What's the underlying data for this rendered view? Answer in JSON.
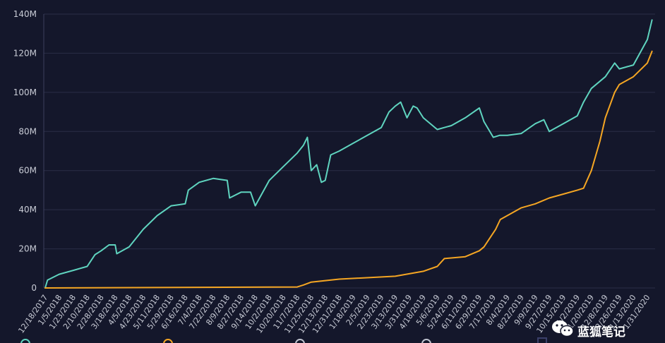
{
  "chart_data": {
    "type": "line",
    "ylim": [
      0,
      140000000
    ],
    "y_ticks": [
      {
        "value": 0,
        "label": "0"
      },
      {
        "value": 20000000,
        "label": "20M"
      },
      {
        "value": 40000000,
        "label": "40M"
      },
      {
        "value": 60000000,
        "label": "60M"
      },
      {
        "value": 80000000,
        "label": "80M"
      },
      {
        "value": 100000000,
        "label": "100M"
      },
      {
        "value": 120000000,
        "label": "120M"
      },
      {
        "value": 140000000,
        "label": "140M"
      }
    ],
    "x_tick_labels": [
      "12/18/2017",
      "1/5/2018",
      "1/23/2018",
      "2/10/2018",
      "2/28/2018",
      "3/18/2018",
      "4/5/2018",
      "4/23/2018",
      "5/11/2018",
      "5/29/2018",
      "6/16/2018",
      "7/4/2018",
      "7/22/2018",
      "8/9/2018",
      "8/27/2018",
      "9/14/2018",
      "10/2/2018",
      "10/20/2018",
      "11/7/2018",
      "11/25/2018",
      "12/13/2018",
      "12/31/2018",
      "1/18/2019",
      "2/5/2019",
      "2/23/2019",
      "3/13/2019",
      "3/31/2019",
      "4/18/2019",
      "5/6/2019",
      "5/24/2019",
      "6/11/2019",
      "6/29/2019",
      "7/17/2019",
      "8/4/2019",
      "8/22/2019",
      "9/9/2019",
      "9/27/2019",
      "10/15/2019",
      "11/2/2019",
      "11/20/2019",
      "12/8/2019",
      "12/26/2019",
      "1/13/2020",
      "1/31/2020"
    ],
    "grid": true,
    "series": [
      {
        "color": "#5fd4bf",
        "x": [
          "12/18/2017",
          "12/21/2017",
          "1/5/2018",
          "1/23/2018",
          "2/10/2018",
          "2/20/2018",
          "2/28/2018",
          "3/10/2018",
          "3/18/2018",
          "3/20/2018",
          "4/5/2018",
          "4/23/2018",
          "5/11/2018",
          "5/29/2018",
          "6/16/2018",
          "6/20/2018",
          "7/4/2018",
          "7/22/2018",
          "8/9/2018",
          "8/12/2018",
          "8/27/2018",
          "9/8/2018",
          "9/14/2018",
          "10/2/2018",
          "10/20/2018",
          "11/7/2018",
          "11/15/2018",
          "11/20/2018",
          "11/25/2018",
          "12/2/2018",
          "12/8/2018",
          "12/13/2018",
          "12/20/2018",
          "12/31/2018",
          "1/18/2019",
          "2/5/2019",
          "2/23/2019",
          "3/5/2019",
          "3/13/2019",
          "3/20/2019",
          "3/28/2019",
          "4/5/2019",
          "4/10/2019",
          "4/18/2019",
          "5/6/2019",
          "5/15/2019",
          "5/24/2019",
          "6/11/2019",
          "6/29/2019",
          "7/5/2019",
          "7/17/2019",
          "7/25/2019",
          "8/4/2019",
          "8/22/2019",
          "9/9/2019",
          "9/20/2019",
          "9/27/2019",
          "10/15/2019",
          "11/2/2019",
          "11/10/2019",
          "11/20/2019",
          "12/8/2019",
          "12/20/2019",
          "12/26/2019",
          "1/13/2020",
          "1/31/2020",
          "2/6/2020"
        ],
        "values": [
          0,
          4000000,
          7000000,
          9000000,
          11000000,
          17000000,
          19000000,
          22000000,
          22000000,
          17500000,
          21000000,
          30000000,
          37000000,
          42000000,
          43000000,
          50000000,
          54000000,
          56000000,
          55000000,
          46000000,
          49000000,
          49000000,
          42000000,
          55000000,
          62000000,
          69000000,
          73000000,
          77000000,
          60000000,
          63000000,
          54000000,
          55000000,
          68000000,
          70000000,
          74000000,
          78000000,
          82000000,
          90000000,
          93000000,
          95000000,
          87000000,
          93000000,
          92000000,
          87000000,
          81000000,
          82000000,
          83000000,
          87000000,
          92000000,
          85000000,
          77000000,
          78000000,
          78000000,
          79000000,
          84000000,
          86000000,
          80000000,
          84000000,
          88000000,
          95000000,
          102000000,
          108000000,
          115000000,
          112000000,
          114000000,
          127000000,
          137000000
        ]
      },
      {
        "color": "#f5a623",
        "x": [
          "12/18/2017",
          "11/7/2018",
          "11/15/2018",
          "11/25/2018",
          "12/31/2018",
          "3/13/2019",
          "4/18/2019",
          "5/6/2019",
          "5/15/2019",
          "6/11/2019",
          "6/29/2019",
          "7/5/2019",
          "7/20/2019",
          "7/26/2019",
          "8/4/2019",
          "8/22/2019",
          "9/9/2019",
          "9/27/2019",
          "10/15/2019",
          "11/2/2019",
          "11/10/2019",
          "11/20/2019",
          "12/1/2019",
          "12/8/2019",
          "12/20/2019",
          "12/26/2019",
          "1/13/2020",
          "1/31/2020",
          "2/6/2020"
        ],
        "values": [
          0,
          500000,
          1500000,
          3000000,
          4500000,
          6000000,
          8500000,
          11000000,
          15000000,
          16000000,
          19000000,
          21000000,
          30000000,
          35000000,
          37000000,
          41000000,
          43000000,
          46000000,
          48000000,
          50000000,
          51000000,
          60000000,
          75000000,
          87000000,
          100000000,
          104000000,
          108000000,
          115000000,
          121000000
        ]
      }
    ],
    "legend_colors": [
      "#5fd4bf",
      "#f5a623",
      "#bfc3cf",
      "#bfc3cf",
      "#3a3f6a"
    ]
  },
  "watermark": {
    "text": "蓝狐笔记",
    "icon": "wechat-icon"
  }
}
